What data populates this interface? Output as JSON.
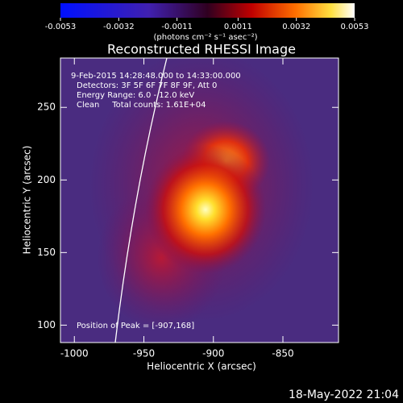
{
  "chart_data": {
    "type": "image",
    "title": "Reconstructed RHESSI Image",
    "colorbar_label": "(photons cm⁻² s⁻¹ asec⁻²)",
    "clim": [
      -0.0053,
      0.0053
    ],
    "cticks": [
      -0.0053,
      -0.0032,
      -0.0011,
      0.0011,
      0.0032,
      0.0053
    ],
    "x_label": "Heliocentric X (arcsec)",
    "y_label": "Heliocentric Y (arcsec)",
    "xlim": [
      -1010,
      -810
    ],
    "ylim": [
      88,
      284
    ],
    "xticks": [
      -1000,
      -950,
      -900,
      -850
    ],
    "yticks": [
      100,
      150,
      200,
      250
    ],
    "annotations": [
      "9-Feb-2015 14:28:48.000 to 14:33:00.000",
      "Detectors: 3F 5F 6F 7F 8F 9F, Att 0",
      "Energy Range: 6.0 - 12.0 keV",
      "Clean     Total counts: 1.61E+04"
    ],
    "peak_label": "Position of Peak = [-907,168]",
    "timestamp": "18-May-2022 21:04"
  }
}
